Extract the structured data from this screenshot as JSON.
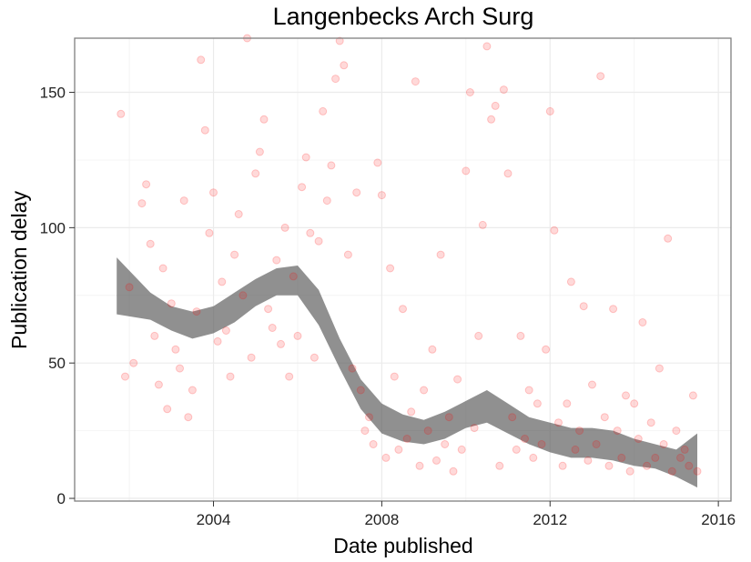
{
  "chart_data": {
    "type": "scatter",
    "title": "Langenbecks Arch Surg",
    "xlabel": "Date published",
    "ylabel": "Publication delay",
    "x_ticks": [
      "2004",
      "2008",
      "2012",
      "2016"
    ],
    "y_ticks": [
      "0",
      "50",
      "100",
      "150"
    ],
    "xlim": [
      2000.7,
      2016.3
    ],
    "ylim": [
      -1,
      170
    ],
    "grid": true,
    "colors": {
      "points": "#ff0000",
      "smooth": "#555555",
      "grid": "#ebebeb",
      "border": "#7f7f7f"
    },
    "smooth": {
      "x": [
        2001.7,
        2002.5,
        2003.0,
        2003.5,
        2004.0,
        2004.5,
        2005.0,
        2005.5,
        2006.0,
        2006.5,
        2007.0,
        2007.5,
        2008.0,
        2008.5,
        2009.0,
        2009.5,
        2010.0,
        2010.5,
        2011.0,
        2011.5,
        2012.0,
        2012.5,
        2013.0,
        2013.5,
        2014.0,
        2014.5,
        2015.0,
        2015.5
      ],
      "lower": [
        68,
        66,
        62,
        59,
        61,
        65,
        71,
        75,
        75,
        64,
        48,
        33,
        24,
        21,
        20,
        22,
        26,
        28,
        24,
        20,
        17,
        15,
        15,
        14,
        12,
        11,
        8,
        4
      ],
      "upper": [
        89,
        76,
        71,
        69,
        71,
        76,
        81,
        85,
        86,
        77,
        59,
        44,
        35,
        31,
        29,
        32,
        36,
        40,
        35,
        30,
        28,
        26,
        26,
        25,
        22,
        20,
        18,
        24
      ]
    },
    "points": [
      [
        2001.8,
        142
      ],
      [
        2001.9,
        45
      ],
      [
        2002.0,
        78
      ],
      [
        2002.1,
        50
      ],
      [
        2002.3,
        109
      ],
      [
        2002.4,
        116
      ],
      [
        2002.5,
        94
      ],
      [
        2002.6,
        60
      ],
      [
        2002.7,
        42
      ],
      [
        2002.8,
        85
      ],
      [
        2002.9,
        33
      ],
      [
        2003.0,
        72
      ],
      [
        2003.1,
        55
      ],
      [
        2003.2,
        48
      ],
      [
        2003.3,
        110
      ],
      [
        2003.4,
        30
      ],
      [
        2003.5,
        40
      ],
      [
        2003.6,
        69
      ],
      [
        2003.7,
        162
      ],
      [
        2003.8,
        136
      ],
      [
        2003.9,
        98
      ],
      [
        2004.0,
        113
      ],
      [
        2004.1,
        58
      ],
      [
        2004.2,
        80
      ],
      [
        2004.3,
        62
      ],
      [
        2004.4,
        45
      ],
      [
        2004.5,
        90
      ],
      [
        2004.6,
        105
      ],
      [
        2004.7,
        75
      ],
      [
        2004.8,
        170
      ],
      [
        2004.9,
        52
      ],
      [
        2005.0,
        120
      ],
      [
        2005.1,
        128
      ],
      [
        2005.2,
        140
      ],
      [
        2005.3,
        70
      ],
      [
        2005.4,
        63
      ],
      [
        2005.5,
        88
      ],
      [
        2005.6,
        57
      ],
      [
        2005.7,
        100
      ],
      [
        2005.8,
        45
      ],
      [
        2005.9,
        82
      ],
      [
        2006.0,
        60
      ],
      [
        2006.1,
        115
      ],
      [
        2006.2,
        126
      ],
      [
        2006.3,
        98
      ],
      [
        2006.4,
        52
      ],
      [
        2006.5,
        95
      ],
      [
        2006.6,
        143
      ],
      [
        2006.7,
        110
      ],
      [
        2006.8,
        123
      ],
      [
        2006.9,
        155
      ],
      [
        2007.0,
        169
      ],
      [
        2007.1,
        160
      ],
      [
        2007.2,
        90
      ],
      [
        2007.3,
        48
      ],
      [
        2007.4,
        113
      ],
      [
        2007.5,
        40
      ],
      [
        2007.6,
        25
      ],
      [
        2007.7,
        30
      ],
      [
        2007.8,
        20
      ],
      [
        2007.9,
        124
      ],
      [
        2008.0,
        112
      ],
      [
        2008.1,
        15
      ],
      [
        2008.2,
        85
      ],
      [
        2008.3,
        45
      ],
      [
        2008.4,
        18
      ],
      [
        2008.5,
        70
      ],
      [
        2008.6,
        22
      ],
      [
        2008.7,
        32
      ],
      [
        2008.8,
        154
      ],
      [
        2008.9,
        12
      ],
      [
        2009.0,
        40
      ],
      [
        2009.1,
        25
      ],
      [
        2009.2,
        55
      ],
      [
        2009.3,
        14
      ],
      [
        2009.4,
        90
      ],
      [
        2009.5,
        20
      ],
      [
        2009.6,
        30
      ],
      [
        2009.7,
        10
      ],
      [
        2009.8,
        44
      ],
      [
        2009.9,
        18
      ],
      [
        2010.0,
        121
      ],
      [
        2010.1,
        150
      ],
      [
        2010.2,
        26
      ],
      [
        2010.3,
        60
      ],
      [
        2010.4,
        101
      ],
      [
        2010.5,
        167
      ],
      [
        2010.6,
        140
      ],
      [
        2010.7,
        145
      ],
      [
        2010.8,
        12
      ],
      [
        2010.9,
        151
      ],
      [
        2011.0,
        120
      ],
      [
        2011.1,
        30
      ],
      [
        2011.2,
        18
      ],
      [
        2011.3,
        60
      ],
      [
        2011.4,
        22
      ],
      [
        2011.5,
        40
      ],
      [
        2011.6,
        15
      ],
      [
        2011.7,
        35
      ],
      [
        2011.8,
        20
      ],
      [
        2011.9,
        55
      ],
      [
        2012.0,
        143
      ],
      [
        2012.1,
        99
      ],
      [
        2012.2,
        28
      ],
      [
        2012.3,
        12
      ],
      [
        2012.4,
        35
      ],
      [
        2012.5,
        80
      ],
      [
        2012.6,
        18
      ],
      [
        2012.7,
        25
      ],
      [
        2012.8,
        71
      ],
      [
        2012.9,
        14
      ],
      [
        2013.0,
        42
      ],
      [
        2013.1,
        20
      ],
      [
        2013.2,
        156
      ],
      [
        2013.3,
        30
      ],
      [
        2013.4,
        12
      ],
      [
        2013.5,
        70
      ],
      [
        2013.6,
        25
      ],
      [
        2013.7,
        15
      ],
      [
        2013.8,
        38
      ],
      [
        2013.9,
        10
      ],
      [
        2014.0,
        35
      ],
      [
        2014.1,
        22
      ],
      [
        2014.2,
        65
      ],
      [
        2014.3,
        12
      ],
      [
        2014.4,
        28
      ],
      [
        2014.5,
        15
      ],
      [
        2014.6,
        48
      ],
      [
        2014.7,
        20
      ],
      [
        2014.8,
        96
      ],
      [
        2014.9,
        10
      ],
      [
        2015.0,
        25
      ],
      [
        2015.1,
        15
      ],
      [
        2015.2,
        18
      ],
      [
        2015.3,
        12
      ],
      [
        2015.4,
        38
      ],
      [
        2015.5,
        10
      ]
    ]
  }
}
